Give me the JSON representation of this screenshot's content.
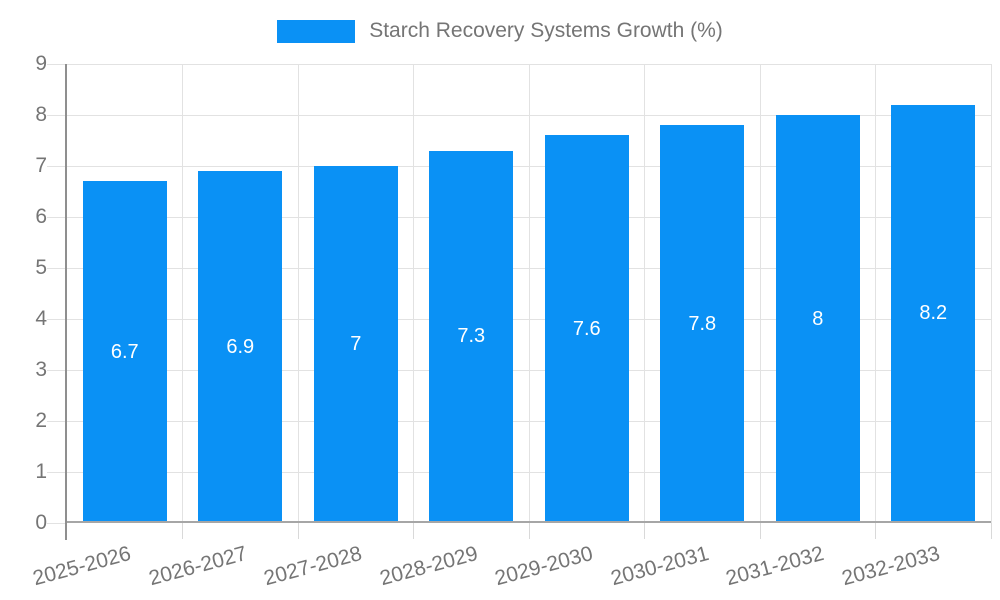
{
  "chart_data": {
    "type": "bar",
    "title": "",
    "legend_label": "Starch Recovery Systems Growth (%)",
    "legend_position": "top",
    "categories": [
      "2025-2026",
      "2026-2027",
      "2027-2028",
      "2028-2029",
      "2029-2030",
      "2030-2031",
      "2031-2032",
      "2032-2033"
    ],
    "values": [
      6.7,
      6.9,
      7,
      7.3,
      7.6,
      7.8,
      8,
      8.2
    ],
    "xlabel": "",
    "ylabel": "",
    "ylim": [
      0,
      9
    ],
    "yticks": [
      0,
      1,
      2,
      3,
      4,
      5,
      6,
      7,
      8,
      9
    ],
    "grid": true,
    "colors": {
      "bar": "#0a91f5",
      "bar_label": "#ffffff",
      "axis_text": "#757575",
      "grid_line": "#e2e2e2",
      "tick_line": "#d9d9d9",
      "axis_line": "#8f8f8f",
      "baseline": "#a6a6a6",
      "background": "#ffffff"
    }
  }
}
